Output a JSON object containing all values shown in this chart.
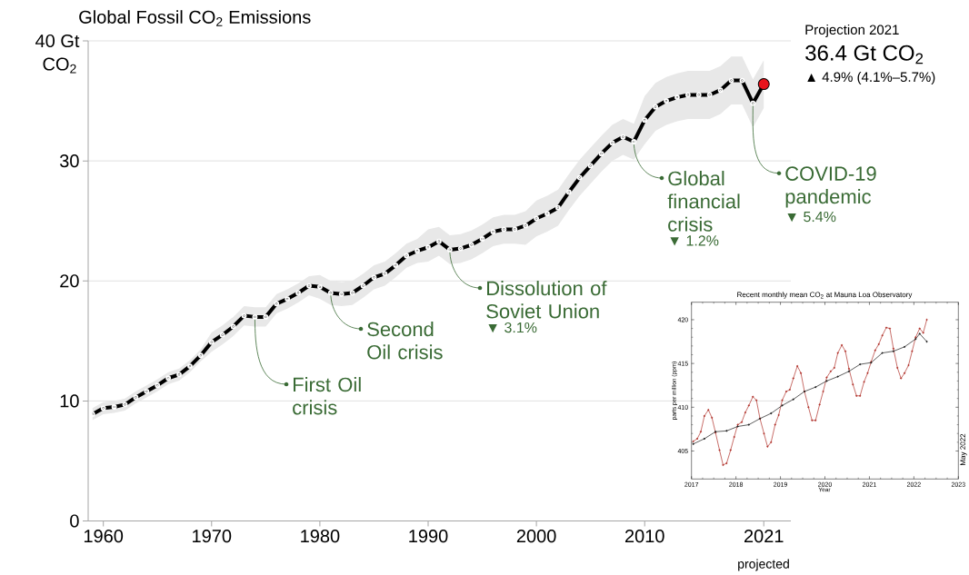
{
  "chart_data": [
    {
      "type": "line",
      "title": "Global Fossil CO$_{2}$ Emissions",
      "ylabel": "CO$_{2}$",
      "x": [
        1959,
        1960,
        1961,
        1962,
        1963,
        1964,
        1965,
        1966,
        1967,
        1968,
        1969,
        1970,
        1971,
        1972,
        1973,
        1974,
        1975,
        1976,
        1977,
        1978,
        1979,
        1980,
        1981,
        1982,
        1983,
        1984,
        1985,
        1986,
        1987,
        1988,
        1989,
        1990,
        1991,
        1992,
        1993,
        1994,
        1995,
        1996,
        1997,
        1998,
        1999,
        2000,
        2001,
        2002,
        2003,
        2004,
        2005,
        2006,
        2007,
        2008,
        2009,
        2010,
        2011,
        2012,
        2013,
        2014,
        2015,
        2016,
        2017,
        2018,
        2019,
        2020,
        2021
      ],
      "series": [
        {
          "color": "#000000",
          "values": [
            8.9,
            9.4,
            9.5,
            9.7,
            10.3,
            10.8,
            11.3,
            11.9,
            12.2,
            12.9,
            13.8,
            14.9,
            15.5,
            16.2,
            17.1,
            17.0,
            17.0,
            18.1,
            18.5,
            19.0,
            19.6,
            19.5,
            19.0,
            18.9,
            19.0,
            19.6,
            20.3,
            20.6,
            21.3,
            22.1,
            22.5,
            22.8,
            23.3,
            22.6,
            22.7,
            23.0,
            23.5,
            24.1,
            24.3,
            24.3,
            24.6,
            25.2,
            25.6,
            26.1,
            27.4,
            28.6,
            29.6,
            30.6,
            31.5,
            32.0,
            31.6,
            33.4,
            34.5,
            35.0,
            35.3,
            35.5,
            35.5,
            35.5,
            35.9,
            36.7,
            36.7,
            34.8,
            36.4
          ],
          "lower": [
            8.4,
            8.9,
            9.0,
            9.2,
            9.8,
            10.3,
            10.8,
            11.4,
            11.7,
            12.4,
            13.3,
            14.1,
            14.7,
            15.4,
            16.3,
            16.2,
            16.2,
            17.3,
            17.7,
            18.2,
            18.8,
            18.5,
            18.0,
            17.9,
            18.0,
            18.6,
            19.3,
            19.6,
            20.3,
            21.1,
            21.5,
            21.6,
            22.1,
            21.4,
            21.5,
            21.8,
            22.3,
            22.9,
            23.1,
            23.1,
            23.0,
            23.7,
            24.1,
            24.6,
            25.9,
            27.1,
            28.1,
            29.1,
            30.0,
            30.5,
            30.1,
            31.4,
            32.5,
            33.0,
            33.3,
            33.5,
            33.5,
            33.5,
            33.9,
            34.7,
            34.7,
            32.8,
            34.4
          ],
          "upper": [
            9.4,
            9.9,
            10.0,
            10.2,
            10.8,
            11.3,
            11.8,
            12.4,
            12.7,
            13.4,
            14.3,
            15.7,
            16.3,
            17.0,
            17.9,
            17.8,
            17.8,
            18.9,
            19.3,
            19.8,
            20.4,
            20.5,
            20.0,
            19.9,
            20.0,
            20.6,
            21.3,
            21.6,
            22.3,
            23.1,
            23.5,
            24.3,
            24.5,
            23.8,
            23.9,
            24.2,
            24.7,
            25.3,
            25.5,
            25.5,
            25.8,
            26.7,
            27.1,
            27.6,
            28.9,
            30.1,
            31.1,
            32.1,
            33.0,
            33.5,
            33.1,
            35.4,
            36.5,
            37.0,
            37.3,
            37.5,
            37.5,
            37.5,
            37.9,
            38.7,
            38.7,
            36.8,
            38.4
          ]
        },
        {
          "type": "scatter",
          "color": "#e8141c",
          "x": [
            2021
          ],
          "values": [
            36.4
          ]
        }
      ],
      "xlim": [
        1958.6,
        2023.5
      ],
      "ylim": [
        0,
        40
      ],
      "xticks": [
        1960,
        1970,
        1980,
        1990,
        2000,
        2010,
        2021
      ],
      "yticks": [
        0,
        10,
        20,
        30,
        {
          "value": 40,
          "label": "40 Gt"
        }
      ],
      "grid": "y",
      "marker": "circle",
      "annotations": [
        {
          "text": "First Oil crisis",
          "x": 1974,
          "y": 17.0
        },
        {
          "text": "Second Oil crisis",
          "x": 1981,
          "y": 19.0
        },
        {
          "text": "Dissolution of Soviet Union",
          "x": 1992,
          "y": 22.6
        },
        "▼ 3.1%",
        {
          "text": "Global financial crisis",
          "x": 2009,
          "y": 31.6
        },
        "▼ 1.2%",
        {
          "text": "COVID-19 pandemic",
          "x": 2020,
          "y": 34.8
        },
        "▼ 5.4%",
        "Projection 2021",
        "36.4 Gt CO$_{2}$",
        "▲ 4.9% (4.1%–5.7%)",
        "projected"
      ]
    },
    {
      "type": "line",
      "title": "Recent monthly mean CO$_{2}$ at Mauna Loa Observatory",
      "xlabel": "Year",
      "ylabel": "parts per million (ppm)",
      "series": [
        {
          "color": "#b0302a",
          "x": [
            2017.04,
            2017.13,
            2017.21,
            2017.29,
            2017.38,
            2017.46,
            2017.54,
            2017.63,
            2017.71,
            2017.79,
            2017.88,
            2017.96,
            2018.04,
            2018.13,
            2018.21,
            2018.29,
            2018.38,
            2018.46,
            2018.54,
            2018.63,
            2018.71,
            2018.79,
            2018.88,
            2018.96,
            2019.04,
            2019.13,
            2019.21,
            2019.29,
            2019.38,
            2019.46,
            2019.54,
            2019.63,
            2019.71,
            2019.79,
            2019.88,
            2019.96,
            2020.04,
            2020.13,
            2020.21,
            2020.29,
            2020.38,
            2020.46,
            2020.54,
            2020.63,
            2020.71,
            2020.79,
            2020.88,
            2020.96,
            2021.04,
            2021.13,
            2021.21,
            2021.29,
            2021.38,
            2021.46,
            2021.54,
            2021.63,
            2021.71,
            2021.79,
            2021.88,
            2021.96,
            2022.04,
            2022.13,
            2022.21,
            2022.29
          ],
          "values": [
            406.1,
            406.4,
            407.2,
            409.0,
            409.7,
            408.8,
            407.1,
            405.1,
            403.4,
            403.6,
            405.1,
            406.6,
            408.0,
            408.3,
            409.4,
            410.2,
            411.2,
            410.8,
            408.7,
            407.0,
            405.5,
            406.0,
            408.0,
            409.1,
            410.8,
            411.8,
            412.0,
            413.3,
            414.7,
            413.9,
            411.8,
            410.0,
            408.5,
            408.5,
            410.3,
            411.8,
            413.4,
            414.1,
            414.5,
            416.2,
            417.1,
            416.4,
            414.4,
            412.6,
            411.3,
            411.3,
            412.9,
            413.9,
            415.2,
            416.5,
            417.2,
            418.2,
            419.1,
            419.0,
            416.7,
            414.5,
            413.3,
            413.9,
            414.8,
            416.4,
            418.0,
            419.0,
            418.5,
            420.0
          ]
        },
        {
          "color": "#1a1a1a",
          "x": [
            2017.04,
            2017.29,
            2017.54,
            2017.79,
            2018.04,
            2018.29,
            2018.54,
            2018.79,
            2019.04,
            2019.29,
            2019.54,
            2019.79,
            2020.04,
            2020.29,
            2020.54,
            2020.79,
            2021.04,
            2021.29,
            2021.54,
            2021.79,
            2022.04,
            2022.13,
            2022.29
          ],
          "values": [
            405.8,
            406.4,
            407.2,
            407.3,
            407.8,
            408.0,
            408.7,
            409.3,
            410.2,
            410.9,
            411.8,
            412.3,
            413.0,
            413.5,
            414.1,
            414.9,
            415.1,
            416.2,
            416.4,
            416.9,
            417.8,
            418.4,
            417.5
          ]
        }
      ],
      "xlim": [
        2017,
        2023
      ],
      "ylim": [
        401.8,
        422
      ],
      "xticks": [
        2017,
        2018,
        2019,
        2020,
        2021,
        2022,
        2023
      ],
      "yticks": [
        405,
        410,
        415,
        420
      ],
      "marker": "circle",
      "annotations": [
        "May 2022"
      ]
    }
  ]
}
